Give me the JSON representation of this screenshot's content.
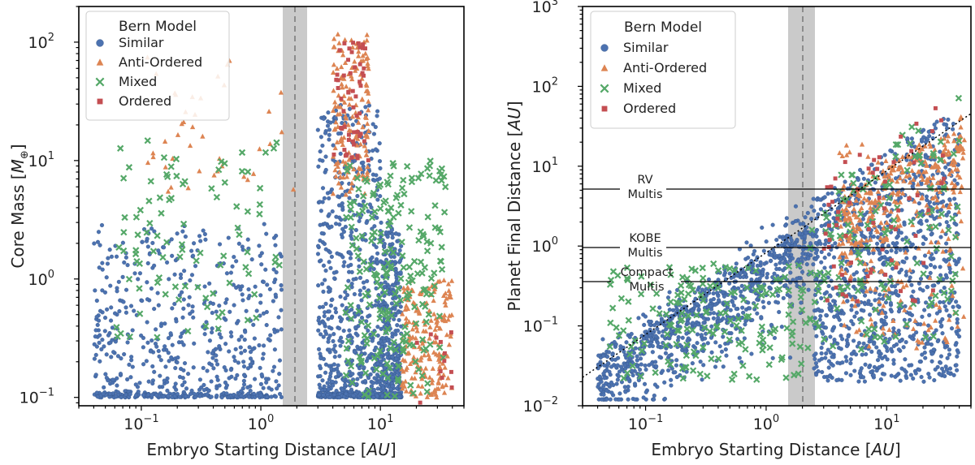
{
  "chart_data": [
    {
      "type": "scatter",
      "xscale": "log",
      "yscale": "log",
      "xlim": [
        0.03,
        50
      ],
      "ylim": [
        0.085,
        200
      ],
      "xlabel_prefix": "Embryo Starting Distance [",
      "xlabel_unit": "AU",
      "xlabel_suffix": "]",
      "ylabel_prefix": "Core Mass [",
      "ylabel_unit": "M",
      "ylabel_sub": "⊕",
      "ylabel_suffix": "]",
      "xticks": [
        {
          "value": 0.1,
          "label": "10",
          "exp": "−1"
        },
        {
          "value": 1,
          "label": "10",
          "exp": "0"
        },
        {
          "value": 10,
          "label": "10",
          "exp": "1"
        }
      ],
      "yticks": [
        {
          "value": 0.1,
          "label": "10",
          "exp": "−1"
        },
        {
          "value": 1,
          "label": "10",
          "exp": "0"
        },
        {
          "value": 10,
          "label": "10",
          "exp": "1"
        },
        {
          "value": 100,
          "label": "10",
          "exp": "2"
        }
      ],
      "shaded_band": [
        1.5,
        2.5
      ],
      "dashed_line_x": 2.0,
      "legend": {
        "title": "Bern Model",
        "position": "top-left"
      },
      "series": [
        {
          "name": "Similar",
          "marker": "circle",
          "color": "#4c72b0",
          "n_points": 4200,
          "clusters": [
            {
              "x_range": [
                0.04,
                1.5
              ],
              "y_range": [
                0.1,
                3
              ],
              "weight": 0.35
            },
            {
              "x_range": [
                3,
                10
              ],
              "y_range": [
                0.1,
                30
              ],
              "weight": 0.4
            },
            {
              "x_range": [
                10,
                15
              ],
              "y_range": [
                0.1,
                3
              ],
              "weight": 0.25
            }
          ]
        },
        {
          "name": "Anti-Ordered",
          "marker": "triangle",
          "color": "#dd8452",
          "n_points": 900,
          "clusters": [
            {
              "x_range": [
                4,
                8
              ],
              "y_range": [
                5,
                120
              ],
              "weight": 0.4
            },
            {
              "x_range": [
                15,
                40
              ],
              "y_range": [
                0.1,
                1
              ],
              "weight": 0.5
            },
            {
              "x_range": [
                0.1,
                2
              ],
              "y_range": [
                5,
                80
              ],
              "weight": 0.1
            }
          ]
        },
        {
          "name": "Mixed",
          "marker": "x",
          "color": "#55a868",
          "n_points": 700,
          "clusters": [
            {
              "x_range": [
                0.06,
                1.5
              ],
              "y_range": [
                0.3,
                15
              ],
              "weight": 0.3
            },
            {
              "x_range": [
                5,
                35
              ],
              "y_range": [
                0.1,
                10
              ],
              "weight": 0.7
            }
          ]
        },
        {
          "name": "Ordered",
          "marker": "square",
          "color": "#c44e52",
          "n_points": 150,
          "clusters": [
            {
              "x_range": [
                4,
                8
              ],
              "y_range": [
                10,
                100
              ],
              "weight": 0.8
            },
            {
              "x_range": [
                20,
                40
              ],
              "y_range": [
                0.06,
                0.5
              ],
              "weight": 0.2
            }
          ]
        }
      ]
    },
    {
      "type": "scatter",
      "xscale": "log",
      "yscale": "log",
      "xlim": [
        0.03,
        50
      ],
      "ylim": [
        0.01,
        1000
      ],
      "xlabel_prefix": "Embryo Starting Distance [",
      "xlabel_unit": "AU",
      "xlabel_suffix": "]",
      "ylabel_prefix": "Planet Final Distance [",
      "ylabel_unit": "AU",
      "ylabel_suffix": "]",
      "xticks": [
        {
          "value": 0.1,
          "label": "10",
          "exp": "−1"
        },
        {
          "value": 1,
          "label": "10",
          "exp": "0"
        },
        {
          "value": 10,
          "label": "10",
          "exp": "1"
        }
      ],
      "yticks": [
        {
          "value": 0.01,
          "label": "10",
          "exp": "−2"
        },
        {
          "value": 0.1,
          "label": "10",
          "exp": "−1"
        },
        {
          "value": 1,
          "label": "10",
          "exp": "0"
        },
        {
          "value": 10,
          "label": "10",
          "exp": "1"
        },
        {
          "value": 100,
          "label": "10",
          "exp": "2"
        },
        {
          "value": 1000,
          "label": "10",
          "exp": "3"
        }
      ],
      "shaded_band": [
        1.5,
        2.5
      ],
      "dashed_line_x": 2.0,
      "diagonal": "y = x",
      "reference_lines": [
        {
          "y": 6.0,
          "label_line1": "RV",
          "label_line2": "Multis"
        },
        {
          "y": 1.1,
          "label_line1": "KOBE",
          "label_line2": "Multis"
        },
        {
          "y": 0.42,
          "label_line1": "Compact",
          "label_line2": "Multis"
        }
      ],
      "legend": {
        "title": "Bern Model",
        "position": "top-left"
      },
      "series": [
        {
          "name": "Similar",
          "marker": "circle",
          "color": "#4c72b0",
          "n_points": 4200
        },
        {
          "name": "Anti-Ordered",
          "marker": "triangle",
          "color": "#dd8452",
          "n_points": 900
        },
        {
          "name": "Mixed",
          "marker": "x",
          "color": "#55a868",
          "n_points": 700
        },
        {
          "name": "Ordered",
          "marker": "square",
          "color": "#c44e52",
          "n_points": 150
        }
      ]
    }
  ]
}
